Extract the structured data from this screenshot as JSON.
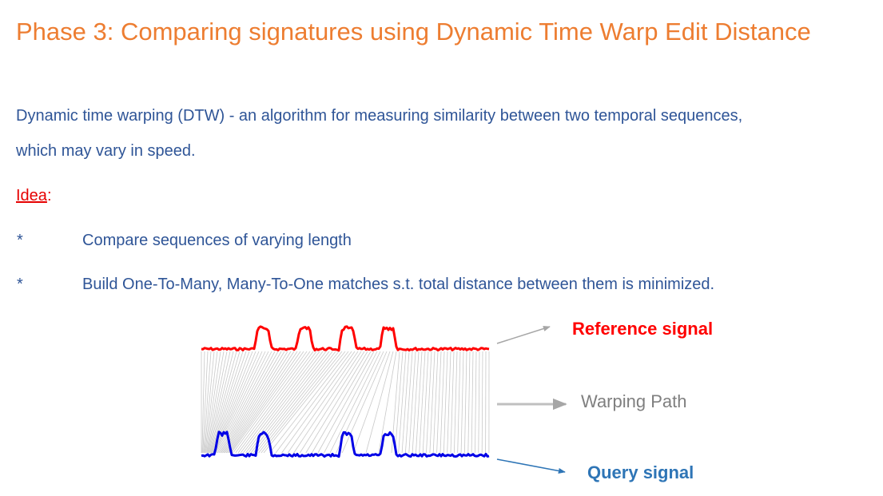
{
  "title": "Phase 3: Comparing signatures using Dynamic Time Warp Edit Distance",
  "description": {
    "line1": "Dynamic time warping (DTW) - an algorithm for measuring similarity between two temporal sequences,",
    "line2": "which may vary in speed."
  },
  "idea": {
    "label": "Idea",
    "colon": ":"
  },
  "bullets": [
    {
      "marker": "*",
      "text": "Compare sequences of varying length"
    },
    {
      "marker": "*",
      "text": "Build One-To-Many, Many-To-One matches s.t. total distance between them is minimized."
    }
  ],
  "diagram": {
    "labels": {
      "reference": "Reference signal",
      "warping": "Warping Path",
      "query": "Query signal"
    },
    "colors": {
      "reference": "#FF0000",
      "query": "#0000E6",
      "warping": "#A6A6A6",
      "warping_label": "#7F7F7F",
      "query_label": "#2E75B6"
    }
  }
}
